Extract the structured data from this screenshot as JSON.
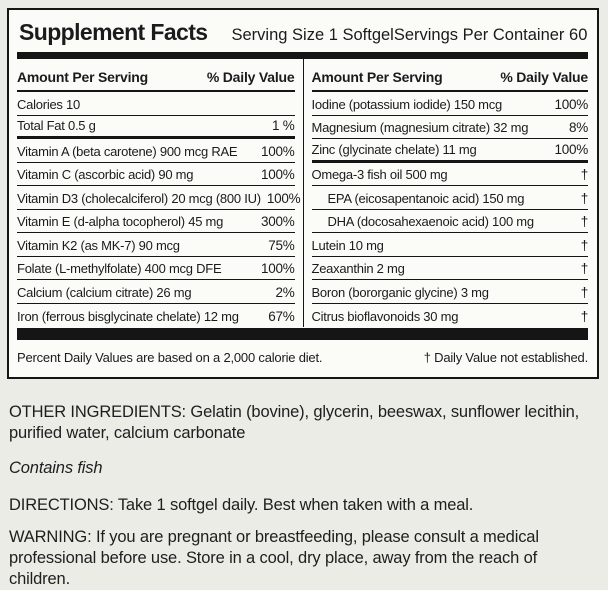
{
  "colors": {
    "page_bg": "#ebece6",
    "panel_bg": "#fbfbf8",
    "ink": "#151515"
  },
  "panel": {
    "title": "Supplement Facts",
    "serving_size": "Serving Size 1 Softgel",
    "servings_per_container": "Servings Per Container 60",
    "col_headers": {
      "amount": "Amount Per Serving",
      "dv": "% Daily Value"
    },
    "left_rows": [
      {
        "name": "Calories 10",
        "dv": ""
      },
      {
        "name": "Total Fat 0.5 g",
        "dv": "1 %"
      },
      {
        "name": "Vitamin A (beta carotene) 900 mcg RAE",
        "dv": "100%"
      },
      {
        "name": "Vitamin C (ascorbic acid) 90 mg",
        "dv": "100%"
      },
      {
        "name": "Vitamin D3 (cholecalciferol) 20 mcg (800 IU)",
        "dv": "100%"
      },
      {
        "name": "Vitamin E (d-alpha tocopherol) 45 mg",
        "dv": "300%"
      },
      {
        "name": "Vitamin K2 (as MK-7) 90 mcg",
        "dv": "75%"
      },
      {
        "name": "Folate (L-methylfolate) 400 mcg DFE",
        "dv": "100%"
      },
      {
        "name": "Calcium (calcium citrate) 26 mg",
        "dv": "2%"
      },
      {
        "name": "Iron (ferrous bisglycinate chelate) 12 mg",
        "dv": "67%"
      }
    ],
    "right_rows": [
      {
        "name": "Iodine (potassium iodide) 150 mcg",
        "dv": "100%"
      },
      {
        "name": "Magnesium (magnesium citrate) 32 mg",
        "dv": "8%"
      },
      {
        "name": "Zinc (glycinate chelate) 11 mg",
        "dv": "100%"
      },
      {
        "name": "Omega-3 fish oil 500 mg",
        "dv": "†"
      },
      {
        "name": "EPA (eicosapentanoic acid) 150 mg",
        "dv": "†"
      },
      {
        "name": "DHA (docosahexaenoic acid) 100 mg",
        "dv": "†"
      },
      {
        "name": "Lutein 10 mg",
        "dv": "†"
      },
      {
        "name": "Zeaxanthin 2 mg",
        "dv": "†"
      },
      {
        "name": "Boron (bororganic glycine) 3 mg",
        "dv": "†"
      },
      {
        "name": "Citrus bioflavonoids 30 mg",
        "dv": "†"
      }
    ],
    "footnote_left": "Percent Daily Values are based on a 2,000 calorie diet.",
    "footnote_right": "† Daily Value not established."
  },
  "below": {
    "other_ingredients": "OTHER INGREDIENTS: Gelatin (bovine), glycerin, beeswax, sunflower lecithin, purified water, calcium carbonate",
    "contains": "Contains fish",
    "directions": "DIRECTIONS: Take 1 softgel daily. Best when taken with a meal.",
    "warning": "WARNING: If you are pregnant or breastfeeding, please consult a medical professional before use. Store in a cool, dry place, away from the reach of children."
  }
}
